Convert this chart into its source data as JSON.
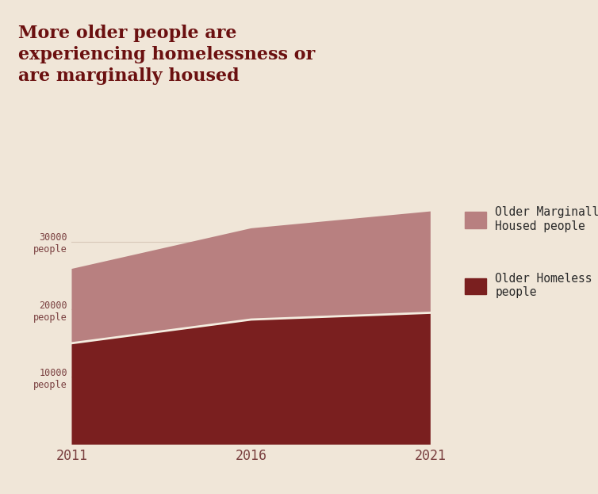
{
  "title": "More older people are\nexperiencing homelessness or\nare marginally housed",
  "background_color": "#f0e6d8",
  "years": [
    2011,
    2016,
    2021
  ],
  "homeless": [
    15000,
    18500,
    19500
  ],
  "total": [
    26000,
    32000,
    34500
  ],
  "homeless_color": "#7a1f1f",
  "marginally_color": "#b88080",
  "title_color": "#6b1010",
  "tick_color": "#7a4040",
  "grid_color": "#d8c8b8",
  "yticks": [
    0,
    10000,
    20000,
    30000
  ],
  "ytick_labels": [
    "",
    "10000\npeople",
    "20000\npeople",
    "30000\npeople"
  ],
  "legend_label_marginally": "Older Marginally\nHoused people",
  "legend_label_homeless": "Older Homeless\npeople",
  "line_color": "#f5ede0",
  "legend_text_color": "#2a2a2a"
}
